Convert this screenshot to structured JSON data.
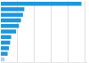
{
  "chart_data": {
    "type": "bar",
    "orientation": "horizontal",
    "categories": [
      null,
      null,
      null,
      null,
      null,
      null,
      null,
      null,
      null,
      null,
      null
    ],
    "values": [
      47.8,
      13.9,
      13.1,
      11.9,
      10.7,
      9.0,
      6.1,
      5.5,
      4.8,
      4.0,
      2.1
    ],
    "colors": [
      "#2196d9",
      "#2196d9",
      "#2196d9",
      "#2196d9",
      "#2196d9",
      "#2196d9",
      "#2196d9",
      "#2196d9",
      "#2196d9",
      "#2196d9",
      "#b0d0ec"
    ],
    "xlim": [
      0,
      50.668
    ],
    "xticks": [
      10,
      20,
      30,
      40,
      50
    ],
    "grid": true,
    "tick_labels": false
  }
}
